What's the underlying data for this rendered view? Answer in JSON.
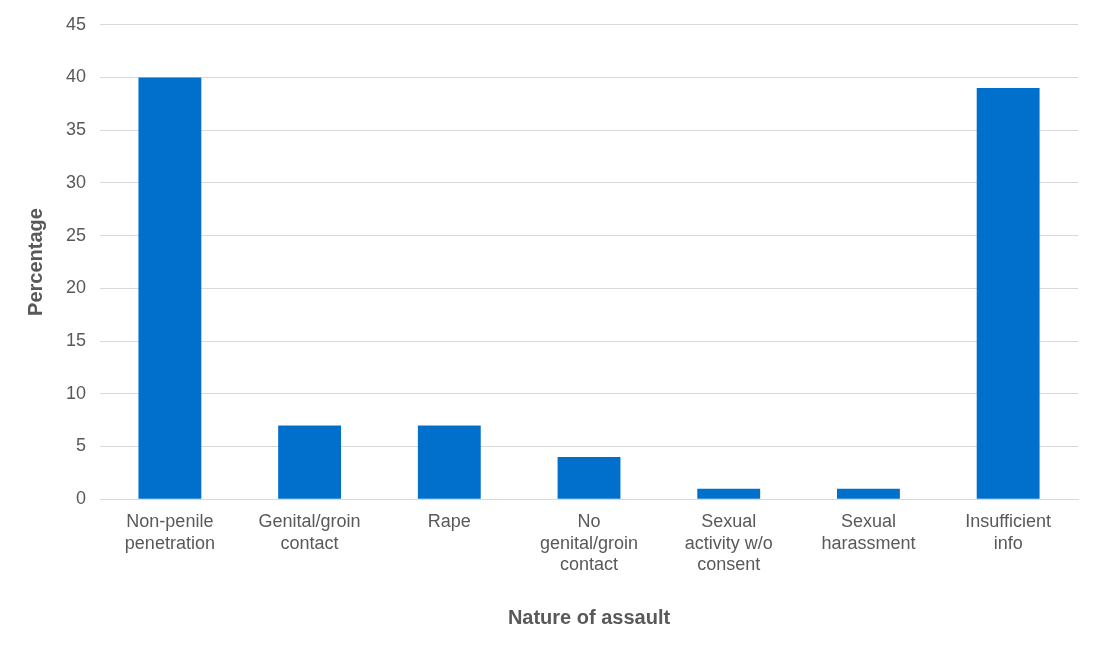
{
  "chart_data": {
    "type": "bar",
    "xlabel": "Nature of assault",
    "ylabel": "Percentage",
    "categories": [
      "Non-penile penetration",
      "Genital/groin contact",
      "Rape",
      "No genital/groin contact",
      "Sexual activity w/o consent",
      "Sexual harassment",
      "Insufficient info"
    ],
    "values": [
      40,
      7,
      7,
      4,
      1,
      1,
      39
    ],
    "color": "#0070cc",
    "ylim": [
      0,
      45
    ],
    "yticks": [
      0,
      5,
      10,
      15,
      20,
      25,
      30,
      35,
      40,
      45
    ],
    "grid": "y",
    "legend": false
  }
}
